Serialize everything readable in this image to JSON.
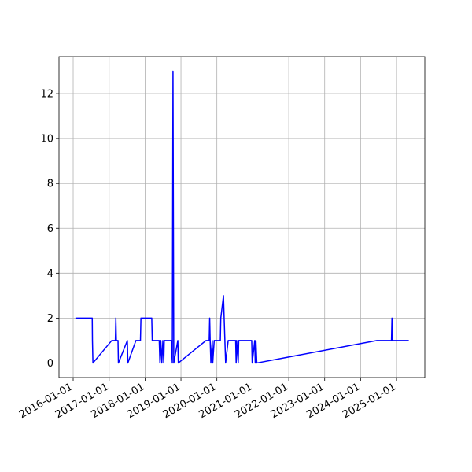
{
  "chart_data": {
    "type": "line",
    "x": [
      "2016-01-24",
      "2016-07-13",
      "2016-07-15",
      "2016-07-20",
      "2017-01-27",
      "2017-03-05",
      "2017-03-10",
      "2017-03-15",
      "2017-04-01",
      "2017-04-05",
      "2017-07-05",
      "2017-07-10",
      "2017-09-30",
      "2017-11-15",
      "2017-11-20",
      "2018-03-10",
      "2018-03-15",
      "2018-05-25",
      "2018-06-01",
      "2018-06-10",
      "2018-06-20",
      "2018-07-01",
      "2018-07-10",
      "2018-07-15",
      "2018-09-25",
      "2018-10-05",
      "2018-10-12",
      "2018-10-20",
      "2018-11-30",
      "2018-12-05",
      "2019-09-12",
      "2019-10-15",
      "2019-10-20",
      "2019-10-25",
      "2019-11-01",
      "2019-11-15",
      "2019-11-20",
      "2019-12-05",
      "2020-02-05",
      "2020-02-10",
      "2020-03-08",
      "2020-03-15",
      "2020-03-30",
      "2020-04-25",
      "2020-07-10",
      "2020-07-15",
      "2020-07-20",
      "2020-08-05",
      "2020-08-10",
      "2020-12-20",
      "2020-12-25",
      "2021-01-20",
      "2021-01-25",
      "2021-02-01",
      "2021-02-10",
      "2024-06-15",
      "2024-11-10",
      "2024-11-15",
      "2024-11-20",
      "2025-05-05"
    ],
    "values": [
      2,
      2,
      1,
      0,
      1,
      1,
      2,
      1,
      1,
      0,
      1,
      0,
      1,
      1,
      2,
      2,
      1,
      1,
      0,
      1,
      0,
      1,
      0,
      1,
      1,
      0,
      13,
      0,
      1,
      0,
      1,
      1,
      2,
      1,
      0,
      1,
      0,
      1,
      1,
      2,
      3,
      2,
      0,
      1,
      1,
      0,
      1,
      0,
      1,
      1,
      0,
      1,
      0,
      1,
      0,
      1,
      1,
      2,
      1,
      1
    ],
    "color": "#0000ff",
    "xlim": [
      "2015-08-10",
      "2025-10-15"
    ],
    "xticks": [
      "2016-01-01",
      "2017-01-01",
      "2018-01-01",
      "2019-01-01",
      "2020-01-01",
      "2021-01-01",
      "2022-01-01",
      "2023-01-01",
      "2024-01-01",
      "2025-01-01"
    ],
    "ylim": [
      -0.65,
      13.65
    ],
    "yticks": [
      0,
      2,
      4,
      6,
      8,
      10,
      12
    ],
    "grid": true
  }
}
